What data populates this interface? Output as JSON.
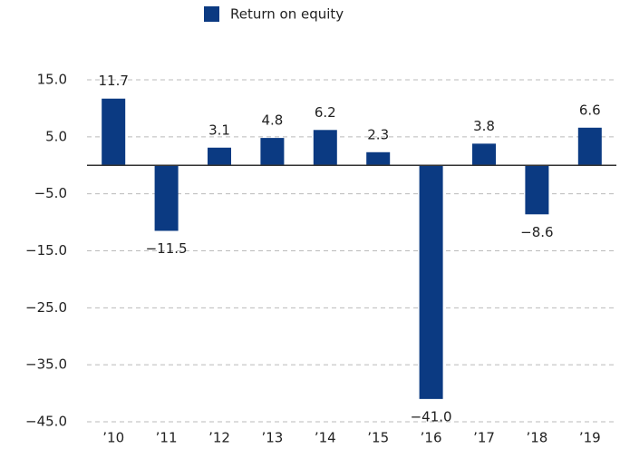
{
  "chart_data": {
    "type": "bar",
    "series": [
      {
        "name": "Return on equity",
        "color": "#0b3a82",
        "values": [
          11.7,
          -11.5,
          3.1,
          4.8,
          6.2,
          2.3,
          -41.0,
          3.8,
          -8.6,
          6.6
        ],
        "value_labels": [
          "11.7",
          "−11.5",
          "3.1",
          "4.8",
          "6.2",
          "2.3",
          "−41.0",
          "3.8",
          "−8.6",
          "6.6"
        ]
      }
    ],
    "categories": [
      "’10",
      "’11",
      "’12",
      "’13",
      "’14",
      "’15",
      "’16",
      "’17",
      "’18",
      "’19"
    ],
    "ylim": [
      -45,
      15
    ],
    "yticks": [
      {
        "value": 15,
        "label": "15.0"
      },
      {
        "value": 5,
        "label": "5.0"
      },
      {
        "value": -5,
        "label": "−5.0"
      },
      {
        "value": -15,
        "label": "−15.0"
      },
      {
        "value": -25,
        "label": "−25.0"
      },
      {
        "value": -35,
        "label": "−35.0"
      },
      {
        "value": -45,
        "label": "−45.0"
      }
    ],
    "grid": true,
    "legend": "top"
  }
}
